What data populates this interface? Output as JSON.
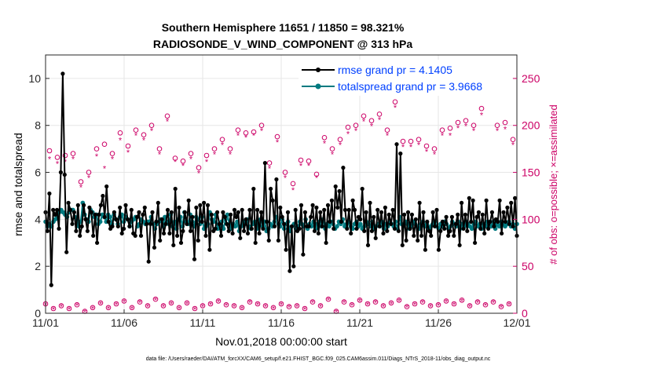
{
  "chart_data": {
    "type": "line",
    "title": "Southern Hemisphere 11651 / 11850 = 98.321%",
    "subtitle": "RADIOSONDE_V_WIND_COMPONENT @ 313 hPa",
    "xlabel": "Nov.01,2018 00:00:00 start",
    "ylabel": "rmse and totalspread",
    "y2label": "# of obs: o=possible; ×=assimilated",
    "footer": "data file: /Users/raeder/DAI/ATM_forcXX/CAM6_setup/f.e21.FHIST_BGC.f09_025.CAM6assim.011/Diags_NTrS_2018-11/obs_diag_output.nc",
    "xlim": [
      0,
      30
    ],
    "ylim": [
      0,
      11
    ],
    "y2lim": [
      0,
      275
    ],
    "x_ticks": [
      0,
      5,
      10,
      15,
      20,
      25,
      30
    ],
    "x_tick_labels": [
      "11/01",
      "11/06",
      "11/11",
      "11/16",
      "11/21",
      "11/26",
      "12/01"
    ],
    "y_ticks": [
      0,
      2,
      4,
      6,
      8,
      10
    ],
    "y2_ticks": [
      0,
      50,
      100,
      150,
      200,
      250
    ],
    "grid": true,
    "legend_position": "top-right",
    "series": [
      {
        "name": "rmse grand pr = 4.1405",
        "color": "#000000",
        "axis": "left",
        "values": [
          4.3,
          3.5,
          5.1,
          1.2,
          4.4,
          4.2,
          4.4,
          3.6,
          6.0,
          10.2,
          5.9,
          2.6,
          4.7,
          4.4,
          3.8,
          4.3,
          3.5,
          4.6,
          3.3,
          3.7,
          4.6,
          4.0,
          3.5,
          4.5,
          4.3,
          3.3,
          4.2,
          3.0,
          4.2,
          4.6,
          5.0,
          4.1,
          5.4,
          3.9,
          3.6,
          3.7,
          4.3,
          4.0,
          3.7,
          4.5,
          3.4,
          3.6,
          4.6,
          4.0,
          3.7,
          4.4,
          3.4,
          3.3,
          4.1,
          4.3,
          3.3,
          4.2,
          4.5,
          3.8,
          2.2,
          3.8,
          4.3,
          2.8,
          3.9,
          4.7,
          3.1,
          4.0,
          3.4,
          3.8,
          4.4,
          3.4,
          4.3,
          2.9,
          5.3,
          3.3,
          4.5,
          3.0,
          3.5,
          4.3,
          3.8,
          4.8,
          3.5,
          4.1,
          2.3,
          4.5,
          3.1,
          4.6,
          3.9,
          4.7,
          3.3,
          4.6,
          2.7,
          4.2,
          3.5,
          3.6,
          4.3,
          3.8,
          3.3,
          4.3,
          4.1,
          3.8,
          3.5,
          4.2,
          3.4,
          4.4,
          4.1,
          4.3,
          3.2,
          4.4,
          3.5,
          4.0,
          3.4,
          4.4,
          3.6,
          5.3,
          3.0,
          4.4,
          3.4,
          4.3,
          3.6,
          6.4,
          3.9,
          3.1,
          5.3,
          4.8,
          3.7,
          5.7,
          3.1,
          4.5,
          4.1,
          3.8,
          2.7,
          4.3,
          1.8,
          3.7,
          2.0,
          4.4,
          3.5,
          3.6,
          4.6,
          2.5,
          4.3,
          3.7,
          3.7,
          4.1,
          4.6,
          3.5,
          4.5,
          3.4,
          4.3,
          3.7,
          4.4,
          3.0,
          4.6,
          3.9,
          4.8,
          3.6,
          5.4,
          4.5,
          5.2,
          3.9,
          6.2,
          4.4,
          3.6,
          4.4,
          3.4,
          4.8,
          4.4,
          3.6,
          4.1,
          4.0,
          5.3,
          3.5,
          4.3,
          2.9,
          4.7,
          3.5,
          4.1,
          3.2,
          4.4,
          3.7,
          4.3,
          3.4,
          4.5,
          3.5,
          4.2,
          3.8,
          4.4,
          3.6,
          7.2,
          3.5,
          6.8,
          2.9,
          4.2,
          3.1,
          4.3,
          3.6,
          4.2,
          3.3,
          4.0,
          3.1,
          4.7,
          3.3,
          4.3,
          2.7,
          3.9,
          3.5,
          3.3,
          4.3,
          3.7,
          4.4,
          2.7,
          3.5,
          3.9,
          3.6,
          4.1,
          3.3,
          3.5,
          4.1,
          3.3,
          3.8,
          4.2,
          2.9,
          4.7,
          3.6,
          4.2,
          3.5,
          4.9,
          3.9,
          4.8,
          3.0,
          4.1,
          4.3,
          3.6,
          4.2,
          3.4,
          4.8,
          3.6,
          3.9,
          4.3,
          3.7,
          4.0,
          3.9,
          4.8,
          3.4,
          4.3,
          3.9,
          4.5,
          3.8,
          4.7,
          3.7,
          4.9,
          3.3
        ]
      },
      {
        "name": "totalspread grand pr = 3.9668",
        "color": "#007a80",
        "axis": "left",
        "values": [
          3.9,
          3.7,
          3.8,
          3.7,
          3.9,
          4.0,
          4.1,
          4.3,
          4.4,
          4.3,
          4.2,
          4.1,
          4.3,
          4.4,
          4.4,
          4.1,
          4.0,
          3.7,
          3.9,
          4.7,
          4.2,
          4.0,
          3.9,
          4.4,
          4.3,
          4.1,
          4.2,
          3.8,
          3.9,
          4.2,
          4.1,
          3.9,
          4.2,
          4.1,
          3.8,
          4.2,
          4.0,
          3.8,
          4.1,
          4.2,
          3.9,
          4.1,
          4.0,
          3.7,
          3.9,
          4.0,
          4.1,
          3.7,
          3.8,
          4.0,
          3.9,
          3.8,
          3.9,
          3.9,
          4.1,
          3.8,
          3.6,
          3.8,
          3.9,
          4.0,
          3.7,
          4.1,
          3.9,
          3.8,
          4.2,
          3.7,
          3.9,
          3.6,
          4.0,
          4.1,
          3.7,
          4.3,
          3.9,
          3.8,
          4.2,
          3.9,
          3.7,
          4.1,
          4.0,
          3.8,
          4.1,
          3.6,
          3.7,
          3.8,
          4.3,
          4.0,
          3.9,
          4.2,
          3.6,
          3.7,
          3.9,
          3.6,
          4.0,
          4.2,
          3.8,
          3.6,
          3.8,
          3.7,
          3.9,
          3.5,
          3.7,
          3.9,
          3.8,
          4.0,
          3.7,
          3.6,
          3.8,
          3.9,
          3.6,
          3.8,
          4.0,
          3.7,
          3.9,
          3.5,
          3.6,
          3.8,
          3.7,
          3.9,
          4.1,
          3.8,
          3.7,
          4.0,
          3.6,
          3.8,
          3.9,
          3.5,
          3.7,
          3.8,
          3.6,
          3.7,
          3.9,
          3.8,
          3.7,
          4.0,
          3.6,
          3.8,
          3.7,
          3.9,
          3.6,
          3.8,
          3.9,
          3.7,
          4.0,
          3.6,
          3.8,
          3.7,
          3.9,
          3.8,
          3.6,
          3.7,
          3.9,
          3.8,
          4.0,
          3.7,
          3.8,
          3.9,
          3.7,
          3.6,
          3.8,
          3.9,
          3.7,
          3.8,
          3.6,
          3.7,
          3.9,
          3.8,
          3.7,
          3.9,
          3.6,
          3.7,
          3.8,
          3.7,
          3.9,
          3.6,
          3.8,
          3.7,
          3.9,
          3.8,
          3.7,
          3.9,
          3.6,
          4.1,
          3.8,
          3.7,
          3.9,
          3.8,
          3.6,
          3.7,
          3.9,
          3.8,
          3.7,
          3.6,
          3.8,
          3.9,
          3.7,
          3.8,
          3.6,
          3.7,
          3.8,
          3.9,
          3.7,
          3.6,
          3.8,
          3.7,
          3.9,
          3.8,
          3.6,
          3.7,
          3.9,
          3.8,
          3.7,
          3.9,
          3.6,
          3.8,
          3.7,
          3.9,
          3.8,
          3.7,
          3.6,
          3.8,
          3.9,
          3.7,
          3.8,
          3.6,
          3.8,
          3.7,
          3.9,
          3.8,
          3.7,
          3.9,
          3.6,
          3.8,
          3.7,
          3.9,
          3.8,
          3.7,
          3.8,
          3.9,
          3.7,
          3.8,
          3.6,
          3.8
        ]
      },
      {
        "name": "possible obs count",
        "color": "#cc0066",
        "axis": "right",
        "marker": "o",
        "x": [
          0,
          0.25,
          0.5,
          0.75,
          1,
          1.25,
          1.5,
          1.75,
          2,
          2.25,
          2.5,
          2.75,
          3,
          3.25,
          3.5,
          3.75,
          4,
          4.25,
          4.5,
          4.75,
          5,
          5.25,
          5.5,
          5.75,
          6,
          6.25,
          6.5,
          6.75,
          7,
          7.25,
          7.5,
          7.75,
          8,
          8.25,
          8.5,
          8.75,
          9,
          9.25,
          9.5,
          9.75,
          10,
          10.25,
          10.5,
          10.75,
          11,
          11.25,
          11.5,
          11.75,
          12,
          12.25,
          12.5,
          12.75,
          13,
          13.25,
          13.5,
          13.75,
          14,
          14.25,
          14.5,
          14.75,
          15,
          15.25,
          15.5,
          15.75,
          16,
          16.25,
          16.5,
          16.75,
          17,
          17.25,
          17.5,
          17.75,
          18,
          18.25,
          18.5,
          18.75,
          19,
          19.25,
          19.5,
          19.75,
          20,
          20.25,
          20.5,
          20.75,
          21,
          21.25,
          21.5,
          21.75,
          22,
          22.25,
          22.5,
          22.75,
          23,
          23.25,
          23.5,
          23.75,
          24,
          24.25,
          24.5,
          24.75,
          25,
          25.25,
          25.5,
          25.75,
          26,
          26.25,
          26.5,
          26.75,
          27,
          27.25,
          27.5,
          27.75,
          28,
          28.25,
          28.5,
          28.75,
          29,
          29.25,
          29.5,
          29.75
        ],
        "values": [
          10,
          173,
          5,
          166,
          8,
          168,
          5,
          170,
          9,
          140,
          2,
          150,
          6,
          175,
          11,
          180,
          6,
          170,
          10,
          192,
          13,
          178,
          6,
          195,
          12,
          190,
          8,
          200,
          15,
          175,
          8,
          210,
          11,
          165,
          6,
          162,
          11,
          170,
          5,
          155,
          8,
          168,
          10,
          175,
          13,
          185,
          9,
          175,
          8,
          195,
          6,
          192,
          12,
          193,
          10,
          200,
          8,
          160,
          6,
          188,
          10,
          150,
          7,
          138,
          8,
          163,
          5,
          162,
          12,
          148,
          8,
          187,
          15,
          175,
          2,
          185,
          12,
          198,
          9,
          200,
          14,
          210,
          10,
          205,
          12,
          212,
          8,
          195,
          11,
          225,
          14,
          183,
          7,
          183,
          10,
          185,
          12,
          178,
          8,
          175,
          9,
          195,
          13,
          197,
          10,
          203,
          14,
          205,
          8,
          200,
          12,
          218,
          9,
          245,
          12,
          200,
          7,
          203,
          10,
          185
        ]
      },
      {
        "name": "assimilated obs count",
        "color": "#cc0066",
        "axis": "right",
        "marker": "*",
        "x": [
          0,
          0.25,
          0.5,
          0.75,
          1,
          1.25,
          1.5,
          1.75,
          2,
          2.25,
          2.5,
          2.75,
          3,
          3.25,
          3.5,
          3.75,
          4,
          4.25,
          4.5,
          4.75,
          5,
          5.25,
          5.5,
          5.75,
          6,
          6.25,
          6.5,
          6.75,
          7,
          7.25,
          7.5,
          7.75,
          8,
          8.25,
          8.5,
          8.75,
          9,
          9.25,
          9.5,
          9.75,
          10,
          10.25,
          10.5,
          10.75,
          11,
          11.25,
          11.5,
          11.75,
          12,
          12.25,
          12.5,
          12.75,
          13,
          13.25,
          13.5,
          13.75,
          14,
          14.25,
          14.5,
          14.75,
          15,
          15.25,
          15.5,
          15.75,
          16,
          16.25,
          16.5,
          16.75,
          17,
          17.25,
          17.5,
          17.75,
          18,
          18.25,
          18.5,
          18.75,
          19,
          19.25,
          19.5,
          19.75,
          20,
          20.25,
          20.5,
          20.75,
          21,
          21.25,
          21.5,
          21.75,
          22,
          22.25,
          22.5,
          22.75,
          23,
          23.25,
          23.5,
          23.75,
          24,
          24.25,
          24.5,
          24.75,
          25,
          25.25,
          25.5,
          25.75,
          26,
          26.25,
          26.5,
          26.75,
          27,
          27.25,
          27.5,
          27.75,
          28,
          28.25,
          28.5,
          28.75,
          29,
          29.25,
          29.5,
          29.75
        ],
        "values": [
          10,
          165,
          5,
          160,
          8,
          162,
          5,
          165,
          9,
          135,
          2,
          145,
          6,
          168,
          11,
          155,
          6,
          165,
          10,
          185,
          13,
          172,
          6,
          190,
          12,
          185,
          8,
          195,
          15,
          170,
          8,
          205,
          11,
          162,
          6,
          158,
          11,
          165,
          5,
          150,
          8,
          162,
          10,
          170,
          13,
          180,
          9,
          170,
          8,
          190,
          6,
          188,
          12,
          190,
          10,
          195,
          8,
          155,
          6,
          183,
          10,
          145,
          7,
          132,
          8,
          158,
          5,
          158,
          12,
          145,
          8,
          182,
          15,
          170,
          2,
          180,
          12,
          192,
          9,
          195,
          14,
          205,
          10,
          200,
          12,
          207,
          8,
          190,
          11,
          220,
          14,
          178,
          7,
          178,
          10,
          180,
          12,
          173,
          8,
          170,
          9,
          190,
          13,
          190,
          10,
          198,
          14,
          200,
          8,
          195,
          12,
          212,
          9,
          240,
          12,
          195,
          7,
          197,
          10,
          180
        ]
      }
    ]
  }
}
